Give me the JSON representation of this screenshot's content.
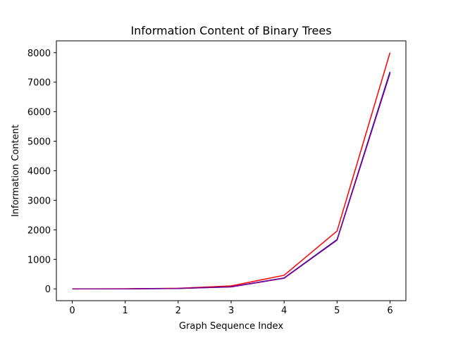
{
  "chart_data": {
    "type": "line",
    "title": "Information Content of Binary Trees",
    "xlabel": "Graph Sequence Index",
    "ylabel": "Information Content",
    "x": [
      0,
      1,
      2,
      3,
      4,
      5,
      6
    ],
    "xticks": [
      0,
      1,
      2,
      3,
      4,
      5,
      6
    ],
    "yticks": [
      0,
      1000,
      2000,
      3000,
      4000,
      5000,
      6000,
      7000,
      8000
    ],
    "xlim": [
      -0.3,
      6.3
    ],
    "ylim": [
      -400,
      8400
    ],
    "grid": false,
    "series": [
      {
        "color": "#ff0000",
        "values": [
          0,
          2,
          20,
          100,
          460,
          1960,
          8000
        ]
      },
      {
        "color": "#0000ff",
        "values": [
          0,
          1,
          15,
          70,
          370,
          1670,
          7350
        ]
      },
      {
        "color": "#800080",
        "values": [
          0,
          1,
          15,
          65,
          360,
          1650,
          7300
        ]
      }
    ]
  }
}
